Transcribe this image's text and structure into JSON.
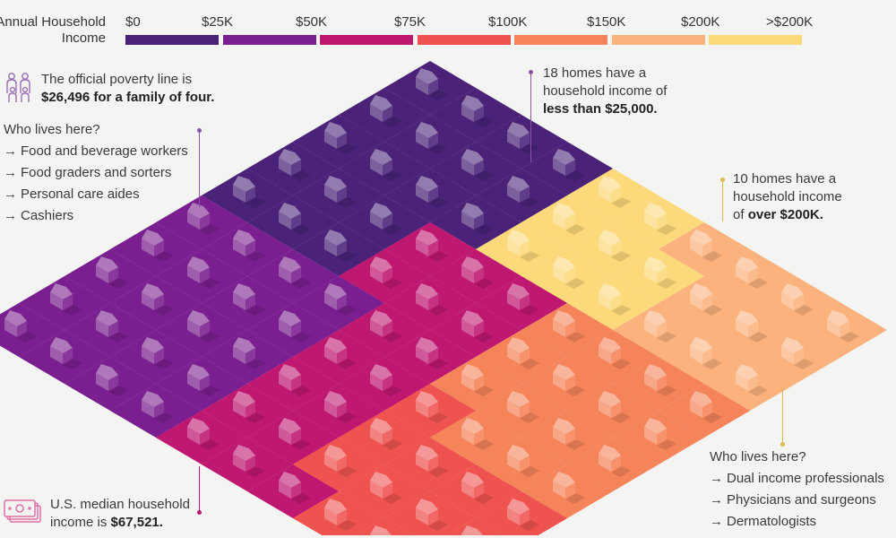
{
  "legend": {
    "title_line1": "Annual Household",
    "title_line2": "Income",
    "ticks": [
      "$0",
      "$25K",
      "$50K",
      "$75K",
      "$100K",
      "$150K",
      "$200K",
      ">$200K"
    ],
    "colors": [
      "#4a2379",
      "#7a1f8f",
      "#bf1870",
      "#ef5350",
      "#f6845a",
      "#fbb27d",
      "#fcd97a"
    ]
  },
  "chart_data": {
    "type": "waffle",
    "total_homes": 100,
    "bins": [
      {
        "from": "$0",
        "to": "$25K",
        "count": 18,
        "color": "#4a2379"
      },
      {
        "from": "$25K",
        "to": "$50K",
        "count": 20,
        "color": "#7a1f8f"
      },
      {
        "from": "$50K",
        "to": "$75K",
        "count": 17,
        "color": "#bf1870"
      },
      {
        "from": "$75K",
        "to": "$100K",
        "count": 12,
        "color": "#ef5350"
      },
      {
        "from": "$100K",
        "to": "$150K",
        "count": 15,
        "color": "#f6845a"
      },
      {
        "from": "$150K",
        "to": "$200K",
        "count": 8,
        "color": "#fbb27d"
      },
      {
        "from": "$200K",
        "to": ">$200K",
        "count": 10,
        "color": "#fcd97a"
      }
    ]
  },
  "annotations": {
    "poverty": {
      "icon": "family-icon",
      "line1": "The official poverty line is",
      "line2_bold": "$26,496 for a family of four."
    },
    "low_who": {
      "heading": "Who lives here?",
      "items": [
        "Food and beverage workers",
        "Food graders and sorters",
        "Personal care aides",
        "Cashiers"
      ]
    },
    "low_count": {
      "line1": "18 homes have a",
      "line2": "household income of",
      "line3_bold": "less than $25,000."
    },
    "high_count": {
      "line1": "10 homes have a",
      "line2": "household income",
      "line3_prefix": "of ",
      "line3_bold": "over $200K."
    },
    "high_who": {
      "heading": "Who lives here?",
      "items": [
        "Dual income professionals",
        "Physicians and surgeons",
        "Dermatologists"
      ]
    },
    "median": {
      "icon": "money-icon",
      "line1": "U.S. median household",
      "line2_prefix": "income is ",
      "line2_bold": "$67,521."
    },
    "arrow_glyph": "→"
  }
}
